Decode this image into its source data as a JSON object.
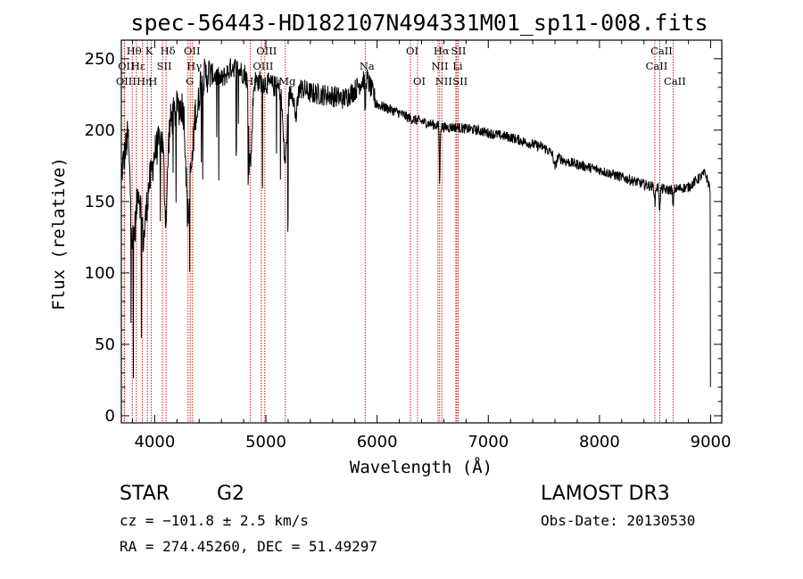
{
  "chart_data": {
    "type": "line",
    "title": "spec-56443-HD182107N494331M01_sp11-008.fits",
    "xlabel": "Wavelength (Å)",
    "ylabel": "Flux (relative)",
    "xlim": [
      3700,
      9100
    ],
    "ylim": [
      -5,
      263
    ],
    "xticks": [
      4000,
      5000,
      6000,
      7000,
      8000,
      9000
    ],
    "yticks": [
      0,
      50,
      100,
      150,
      200,
      250
    ],
    "continuum_anchors": [
      [
        3700,
        175
      ],
      [
        3760,
        215
      ],
      [
        3800,
        150
      ],
      [
        3850,
        180
      ],
      [
        3900,
        130
      ],
      [
        3950,
        170
      ],
      [
        4000,
        185
      ],
      [
        4100,
        200
      ],
      [
        4200,
        215
      ],
      [
        4300,
        220
      ],
      [
        4400,
        235
      ],
      [
        4500,
        240
      ],
      [
        4600,
        235
      ],
      [
        4700,
        245
      ],
      [
        4800,
        240
      ],
      [
        4900,
        235
      ],
      [
        5000,
        233
      ],
      [
        5100,
        230
      ],
      [
        5200,
        228
      ],
      [
        5300,
        230
      ],
      [
        5400,
        226
      ],
      [
        5500,
        225
      ],
      [
        5600,
        224
      ],
      [
        5700,
        222
      ],
      [
        5800,
        228
      ],
      [
        5900,
        238
      ],
      [
        6000,
        218
      ],
      [
        6100,
        215
      ],
      [
        6200,
        212
      ],
      [
        6300,
        208
      ],
      [
        6400,
        206
      ],
      [
        6500,
        204
      ],
      [
        6600,
        202
      ],
      [
        6700,
        202
      ],
      [
        6800,
        201
      ],
      [
        6900,
        200
      ],
      [
        7000,
        198
      ],
      [
        7200,
        195
      ],
      [
        7400,
        190
      ],
      [
        7500,
        188
      ],
      [
        7600,
        182
      ],
      [
        7700,
        178
      ],
      [
        7800,
        176
      ],
      [
        8000,
        172
      ],
      [
        8200,
        167
      ],
      [
        8400,
        162
      ],
      [
        8600,
        158
      ],
      [
        8800,
        160
      ],
      [
        8950,
        170
      ],
      [
        9000,
        158
      ]
    ],
    "absorption_features": [
      [
        3760,
        60,
        15
      ],
      [
        3810,
        40,
        15
      ],
      [
        3835,
        30,
        15
      ],
      [
        3889,
        25,
        8
      ],
      [
        3934,
        35,
        5
      ],
      [
        3968,
        25,
        5
      ],
      [
        4101,
        20,
        60
      ],
      [
        4300,
        25,
        80
      ],
      [
        4340,
        20,
        40
      ],
      [
        4383,
        20,
        20
      ],
      [
        4861,
        20,
        60
      ],
      [
        5172,
        25,
        50
      ],
      [
        5270,
        20,
        20
      ],
      [
        5893,
        6,
        25
      ],
      [
        6563,
        5,
        40
      ],
      [
        7600,
        15,
        8
      ],
      [
        8498,
        6,
        12
      ],
      [
        8542,
        6,
        16
      ],
      [
        8662,
        6,
        14
      ]
    ],
    "noise_amplitude": 12,
    "line_markers": [
      {
        "label": "Hθ",
        "wavelength": 3798,
        "row": 0
      },
      {
        "label": "K",
        "wavelength": 3934,
        "row": 0
      },
      {
        "label": "Hδ",
        "wavelength": 4102,
        "row": 0
      },
      {
        "label": "OII",
        "wavelength": 4320,
        "row": 0
      },
      {
        "label": "OIII",
        "wavelength": 4990,
        "row": 0
      },
      {
        "label": "OI",
        "wavelength": 6300,
        "row": 0
      },
      {
        "label": "Hα",
        "wavelength": 6563,
        "row": 0
      },
      {
        "label": "SII",
        "wavelength": 6717,
        "row": 0
      },
      {
        "label": "CaII",
        "wavelength": 8542,
        "row": 0
      },
      {
        "label": "OII",
        "wavelength": 3727,
        "row": 1
      },
      {
        "label": "Hε",
        "wavelength": 3835,
        "row": 1
      },
      {
        "label": "SII",
        "wavelength": 4070,
        "row": 1
      },
      {
        "label": "Hγ",
        "wavelength": 4340,
        "row": 1
      },
      {
        "label": "OIII",
        "wavelength": 4959,
        "row": 1
      },
      {
        "label": "Na",
        "wavelength": 5893,
        "row": 1
      },
      {
        "label": "NII",
        "wavelength": 6548,
        "row": 1
      },
      {
        "label": "Li",
        "wavelength": 6708,
        "row": 1
      },
      {
        "label": "CaII",
        "wavelength": 8498,
        "row": 1
      },
      {
        "label": "OIII",
        "wavelength": 3727,
        "row": 2
      },
      {
        "label": "Hη",
        "wavelength": 3889,
        "row": 2
      },
      {
        "label": "H",
        "wavelength": 3968,
        "row": 2
      },
      {
        "label": "G",
        "wavelength": 4300,
        "row": 2
      },
      {
        "label": "Hβ",
        "wavelength": 4861,
        "row": 2
      },
      {
        "label": "Mg",
        "wavelength": 5175,
        "row": 2
      },
      {
        "label": "OI",
        "wavelength": 6364,
        "row": 2
      },
      {
        "label": "NII",
        "wavelength": 6583,
        "row": 2
      },
      {
        "label": "SII",
        "wavelength": 6731,
        "row": 2
      },
      {
        "label": "CaII",
        "wavelength": 8662,
        "row": 2
      }
    ],
    "marker_color": "#cc0000"
  },
  "info": {
    "class": "STAR",
    "subclass": "G2",
    "survey": "LAMOST DR3",
    "cz": "cz = −101.8 ± 2.5 km/s",
    "obs_date": "Obs-Date: 20130530",
    "radec": "RA = 274.45260, DEC =  51.49297"
  }
}
